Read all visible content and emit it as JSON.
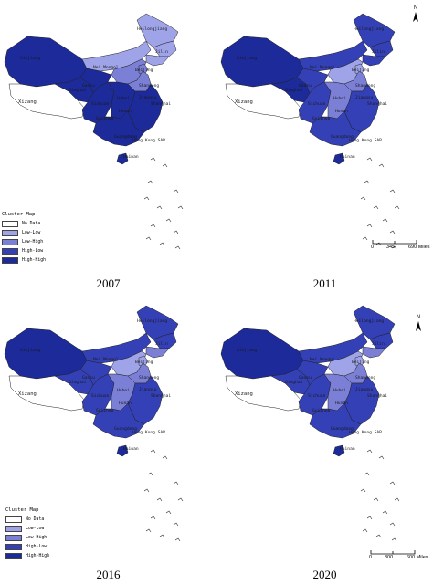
{
  "legend": {
    "title": "Cluster Map",
    "items": [
      {
        "label": "No Data",
        "color": "#ffffff"
      },
      {
        "label": "Low-Low",
        "color": "#9fa4e8"
      },
      {
        "label": "Low-High",
        "color": "#7b80d6"
      },
      {
        "label": "High-Low",
        "color": "#3440b6"
      },
      {
        "label": "High-High",
        "color": "#1c2a9a"
      }
    ]
  },
  "north_label": "N",
  "panels": [
    {
      "year": "2007",
      "show_legend": true,
      "show_scale": false,
      "labels": [
        "Heilongjiang",
        "Xinjiang",
        "Nei Mongol",
        "Jilin",
        "Beijing",
        "Xizang",
        "Qinghai",
        "Gansu",
        "Shandong",
        "Jiangsu",
        "Shanghai",
        "Sichuan",
        "Hubei",
        "Hunan",
        "Guizhou",
        "Guangdong",
        "Hong Kong SAR",
        "Hainan"
      ],
      "colors": {
        "xinjiang": "#1c2a9a",
        "xizang": "#ffffff",
        "qinghai": "#1c2a9a",
        "gansu": "#1c2a9a",
        "neimongol": "#9fa4e8",
        "heilongjiang": "#9fa4e8",
        "jilin": "#9fa4e8",
        "liaoning": "#9fa4e8",
        "beijing": "#7b80d6",
        "hebei": "#7b80d6",
        "north": "#7b80d6",
        "sichuan": "#1c2a9a",
        "central": "#1c2a9a",
        "east": "#1c2a9a",
        "south": "#1c2a9a",
        "hainan": "#1c2a9a"
      }
    },
    {
      "year": "2011",
      "show_legend": false,
      "show_scale": true,
      "scale": {
        "zero": "0",
        "mid": "345",
        "end": "690 Miles"
      },
      "labels": [
        "Heilongjiang",
        "Xinjiang",
        "Nei Mongol",
        "Jilin",
        "Beijing",
        "Xizang",
        "Qinghai",
        "Gansu",
        "Shandong",
        "Jiangsu",
        "Shanghai",
        "Sichuan",
        "Hubei",
        "Hunan",
        "Guizhou",
        "Guangdong",
        "Hong Kong SAR",
        "Hainan"
      ],
      "colors": {
        "xinjiang": "#1c2a9a",
        "xizang": "#ffffff",
        "qinghai": "#1c2a9a",
        "gansu": "#3440b6",
        "neimongol": "#3440b6",
        "heilongjiang": "#3440b6",
        "jilin": "#3440b6",
        "liaoning": "#3440b6",
        "beijing": "#9fa4e8",
        "hebei": "#7b80d6",
        "north": "#9fa4e8",
        "sichuan": "#3440b6",
        "central": "#7b80d6",
        "east": "#3440b6",
        "south": "#3440b6",
        "hainan": "#1c2a9a"
      }
    },
    {
      "year": "2016",
      "show_legend": true,
      "show_scale": false,
      "labels": [
        "Heilongjiang",
        "Xinjiang",
        "Nei Mongol",
        "Jilin",
        "Beijing",
        "Xizang",
        "Qinghai",
        "Gansu",
        "Shandong",
        "Jiangsu",
        "Shanghai",
        "Sichuan",
        "Hubei",
        "Hunan",
        "Guizhou",
        "Guangdong",
        "Hong Kong SAR",
        "Hainan"
      ],
      "colors": {
        "xinjiang": "#1c2a9a",
        "xizang": "#ffffff",
        "qinghai": "#3440b6",
        "gansu": "#3440b6",
        "neimongol": "#3440b6",
        "heilongjiang": "#3440b6",
        "jilin": "#3440b6",
        "liaoning": "#7b80d6",
        "beijing": "#9fa4e8",
        "hebei": "#7b80d6",
        "north": "#9fa4e8",
        "sichuan": "#3440b6",
        "central": "#7b80d6",
        "east": "#3440b6",
        "south": "#3440b6",
        "hainan": "#1c2a9a"
      }
    },
    {
      "year": "2020",
      "show_legend": false,
      "show_scale": true,
      "scale": {
        "zero": "0",
        "mid": "300",
        "end": "600 Miles"
      },
      "labels": [
        "Heilongjiang",
        "Xinjiang",
        "Nei Mongol",
        "Jilin",
        "Beijing",
        "Xizang",
        "Qinghai",
        "Gansu",
        "Shandong",
        "Jiangsu",
        "Shanghai",
        "Sichuan",
        "Hubei",
        "Hunan",
        "Guizhou",
        "Guangdong",
        "Hong Kong SAR",
        "Hainan"
      ],
      "colors": {
        "xinjiang": "#1c2a9a",
        "xizang": "#ffffff",
        "qinghai": "#3440b6",
        "gansu": "#3440b6",
        "neimongol": "#3440b6",
        "heilongjiang": "#3440b6",
        "jilin": "#3440b6",
        "liaoning": "#7b80d6",
        "beijing": "#9fa4e8",
        "hebei": "#7b80d6",
        "north": "#9fa4e8",
        "sichuan": "#3440b6",
        "central": "#7b80d6",
        "east": "#3440b6",
        "south": "#3440b6",
        "hainan": "#1c2a9a"
      }
    }
  ]
}
